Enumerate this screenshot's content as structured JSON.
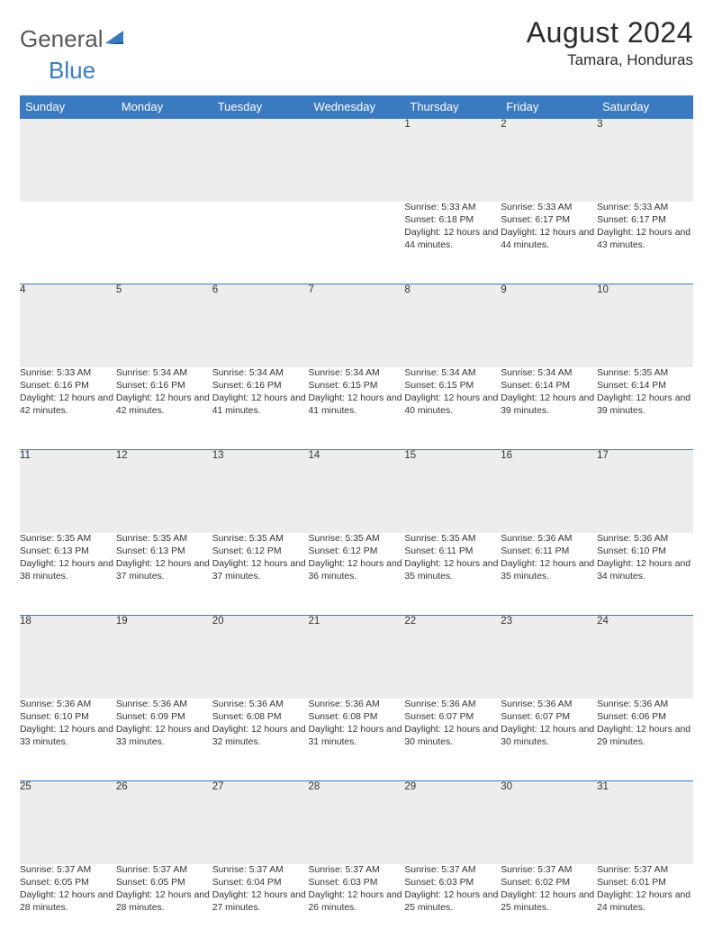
{
  "logo": {
    "part1": "General",
    "part2": "Blue"
  },
  "title": "August 2024",
  "location": "Tamara, Honduras",
  "colors": {
    "headerBg": "#3a7ac0",
    "headerText": "#ffffff",
    "dayBg": "#ededed",
    "borderTop": "#3a7ac0",
    "text": "#333333",
    "logoGray": "#5a5a5a",
    "logoBlue": "#3a7ac0"
  },
  "dayHeaders": [
    "Sunday",
    "Monday",
    "Tuesday",
    "Wednesday",
    "Thursday",
    "Friday",
    "Saturday"
  ],
  "weeks": [
    [
      null,
      null,
      null,
      null,
      {
        "n": "1",
        "sr": "5:33 AM",
        "ss": "6:18 PM",
        "dl": "12 hours and 44 minutes."
      },
      {
        "n": "2",
        "sr": "5:33 AM",
        "ss": "6:17 PM",
        "dl": "12 hours and 44 minutes."
      },
      {
        "n": "3",
        "sr": "5:33 AM",
        "ss": "6:17 PM",
        "dl": "12 hours and 43 minutes."
      }
    ],
    [
      {
        "n": "4",
        "sr": "5:33 AM",
        "ss": "6:16 PM",
        "dl": "12 hours and 42 minutes."
      },
      {
        "n": "5",
        "sr": "5:34 AM",
        "ss": "6:16 PM",
        "dl": "12 hours and 42 minutes."
      },
      {
        "n": "6",
        "sr": "5:34 AM",
        "ss": "6:16 PM",
        "dl": "12 hours and 41 minutes."
      },
      {
        "n": "7",
        "sr": "5:34 AM",
        "ss": "6:15 PM",
        "dl": "12 hours and 41 minutes."
      },
      {
        "n": "8",
        "sr": "5:34 AM",
        "ss": "6:15 PM",
        "dl": "12 hours and 40 minutes."
      },
      {
        "n": "9",
        "sr": "5:34 AM",
        "ss": "6:14 PM",
        "dl": "12 hours and 39 minutes."
      },
      {
        "n": "10",
        "sr": "5:35 AM",
        "ss": "6:14 PM",
        "dl": "12 hours and 39 minutes."
      }
    ],
    [
      {
        "n": "11",
        "sr": "5:35 AM",
        "ss": "6:13 PM",
        "dl": "12 hours and 38 minutes."
      },
      {
        "n": "12",
        "sr": "5:35 AM",
        "ss": "6:13 PM",
        "dl": "12 hours and 37 minutes."
      },
      {
        "n": "13",
        "sr": "5:35 AM",
        "ss": "6:12 PM",
        "dl": "12 hours and 37 minutes."
      },
      {
        "n": "14",
        "sr": "5:35 AM",
        "ss": "6:12 PM",
        "dl": "12 hours and 36 minutes."
      },
      {
        "n": "15",
        "sr": "5:35 AM",
        "ss": "6:11 PM",
        "dl": "12 hours and 35 minutes."
      },
      {
        "n": "16",
        "sr": "5:36 AM",
        "ss": "6:11 PM",
        "dl": "12 hours and 35 minutes."
      },
      {
        "n": "17",
        "sr": "5:36 AM",
        "ss": "6:10 PM",
        "dl": "12 hours and 34 minutes."
      }
    ],
    [
      {
        "n": "18",
        "sr": "5:36 AM",
        "ss": "6:10 PM",
        "dl": "12 hours and 33 minutes."
      },
      {
        "n": "19",
        "sr": "5:36 AM",
        "ss": "6:09 PM",
        "dl": "12 hours and 33 minutes."
      },
      {
        "n": "20",
        "sr": "5:36 AM",
        "ss": "6:08 PM",
        "dl": "12 hours and 32 minutes."
      },
      {
        "n": "21",
        "sr": "5:36 AM",
        "ss": "6:08 PM",
        "dl": "12 hours and 31 minutes."
      },
      {
        "n": "22",
        "sr": "5:36 AM",
        "ss": "6:07 PM",
        "dl": "12 hours and 30 minutes."
      },
      {
        "n": "23",
        "sr": "5:36 AM",
        "ss": "6:07 PM",
        "dl": "12 hours and 30 minutes."
      },
      {
        "n": "24",
        "sr": "5:36 AM",
        "ss": "6:06 PM",
        "dl": "12 hours and 29 minutes."
      }
    ],
    [
      {
        "n": "25",
        "sr": "5:37 AM",
        "ss": "6:05 PM",
        "dl": "12 hours and 28 minutes."
      },
      {
        "n": "26",
        "sr": "5:37 AM",
        "ss": "6:05 PM",
        "dl": "12 hours and 28 minutes."
      },
      {
        "n": "27",
        "sr": "5:37 AM",
        "ss": "6:04 PM",
        "dl": "12 hours and 27 minutes."
      },
      {
        "n": "28",
        "sr": "5:37 AM",
        "ss": "6:03 PM",
        "dl": "12 hours and 26 minutes."
      },
      {
        "n": "29",
        "sr": "5:37 AM",
        "ss": "6:03 PM",
        "dl": "12 hours and 25 minutes."
      },
      {
        "n": "30",
        "sr": "5:37 AM",
        "ss": "6:02 PM",
        "dl": "12 hours and 25 minutes."
      },
      {
        "n": "31",
        "sr": "5:37 AM",
        "ss": "6:01 PM",
        "dl": "12 hours and 24 minutes."
      }
    ]
  ],
  "labels": {
    "sunrise": "Sunrise:",
    "sunset": "Sunset:",
    "daylight": "Daylight:"
  }
}
